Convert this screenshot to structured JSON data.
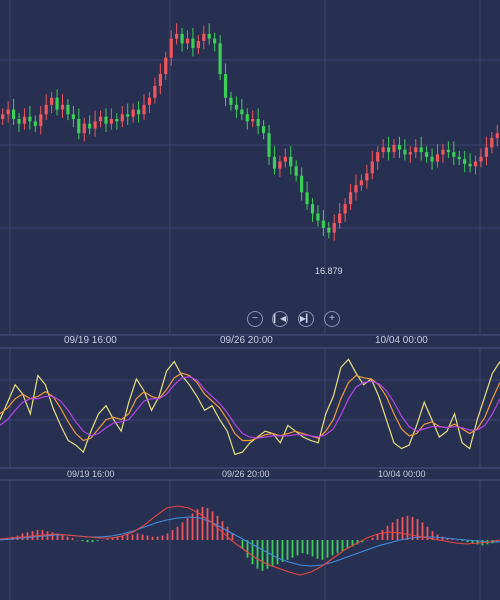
{
  "colors": {
    "background": "#283052",
    "grid": "#3b4470",
    "separator": "#4a5380",
    "up": "#f2555a",
    "down": "#3ccf55",
    "line_yellow": "#e8e07a",
    "line_orange": "#f09a3a",
    "line_purple": "#b445e6",
    "line_blue": "#3f8fe3",
    "line_red": "#e8463e"
  },
  "navigation": {
    "zoom_out_icon": "minus-circle-icon",
    "jump_start_icon": "skip-back-icon",
    "jump_end_icon": "skip-forward-icon",
    "zoom_in_icon": "plus-circle-icon"
  },
  "chart_data": [
    {
      "type": "candlestick",
      "x_labels": [
        "09/19 16:00",
        "09/26 20:00",
        "10/04 00:00"
      ],
      "low_label": "16.879",
      "ylim": [
        16.7,
        17.8
      ],
      "closes": [
        17.38,
        17.4,
        17.36,
        17.34,
        17.37,
        17.35,
        17.33,
        17.38,
        17.42,
        17.45,
        17.4,
        17.42,
        17.38,
        17.36,
        17.3,
        17.34,
        17.32,
        17.35,
        17.37,
        17.34,
        17.36,
        17.35,
        17.38,
        17.37,
        17.4,
        17.38,
        17.42,
        17.45,
        17.5,
        17.55,
        17.62,
        17.7,
        17.72,
        17.68,
        17.7,
        17.66,
        17.69,
        17.72,
        17.7,
        17.68,
        17.55,
        17.45,
        17.42,
        17.4,
        17.38,
        17.35,
        17.36,
        17.33,
        17.3,
        17.2,
        17.15,
        17.18,
        17.2,
        17.16,
        17.12,
        17.05,
        17.0,
        16.96,
        16.93,
        16.9,
        16.88,
        16.92,
        16.96,
        17.0,
        17.05,
        17.08,
        17.1,
        17.13,
        17.18,
        17.22,
        17.24,
        17.22,
        17.25,
        17.23,
        17.21,
        17.22,
        17.24,
        17.22,
        17.2,
        17.18,
        17.21,
        17.23,
        17.22,
        17.2,
        17.19,
        17.17,
        17.16,
        17.18,
        17.2,
        17.24,
        17.28,
        17.3
      ]
    },
    {
      "type": "line",
      "x_labels": [
        "09/19 16:00",
        "09/26 20:00",
        "10/04 00:00"
      ],
      "series": [
        {
          "color": "yellow",
          "values": [
            40,
            55,
            70,
            62,
            45,
            78,
            70,
            50,
            35,
            22,
            18,
            12,
            30,
            45,
            52,
            40,
            30,
            55,
            75,
            65,
            48,
            60,
            82,
            90,
            78,
            70,
            60,
            48,
            52,
            40,
            30,
            10,
            12,
            20,
            25,
            30,
            28,
            20,
            35,
            30,
            25,
            22,
            20,
            45,
            60,
            85,
            92,
            80,
            70,
            75,
            60,
            40,
            20,
            15,
            18,
            35,
            55,
            40,
            25,
            30,
            45,
            20,
            15,
            40,
            60,
            80,
            90
          ]
        },
        {
          "color": "orange",
          "values": [
            45,
            50,
            58,
            62,
            58,
            60,
            64,
            60,
            50,
            38,
            28,
            22,
            24,
            32,
            40,
            42,
            40,
            45,
            58,
            64,
            60,
            58,
            66,
            76,
            80,
            78,
            72,
            62,
            56,
            50,
            40,
            28,
            22,
            22,
            24,
            27,
            28,
            26,
            28,
            30,
            28,
            26,
            24,
            30,
            40,
            58,
            72,
            78,
            76,
            75,
            70,
            60,
            45,
            32,
            26,
            28,
            36,
            38,
            34,
            33,
            36,
            32,
            28,
            32,
            42,
            58,
            72
          ]
        },
        {
          "color": "purple",
          "values": [
            35,
            40,
            48,
            55,
            58,
            58,
            60,
            60,
            56,
            48,
            38,
            30,
            26,
            28,
            33,
            37,
            38,
            40,
            48,
            56,
            58,
            58,
            62,
            70,
            76,
            77,
            74,
            66,
            60,
            54,
            46,
            36,
            28,
            25,
            24,
            25,
            26,
            26,
            26,
            27,
            27,
            26,
            25,
            27,
            32,
            44,
            58,
            68,
            72,
            73,
            71,
            65,
            55,
            43,
            34,
            30,
            32,
            34,
            34,
            33,
            34,
            33,
            31,
            31,
            35,
            45,
            58
          ]
        }
      ]
    },
    {
      "type": "bar+line",
      "x_labels": [],
      "histogram": [
        1,
        2,
        3,
        4,
        6,
        7,
        8,
        9,
        9,
        8,
        7,
        6,
        4,
        3,
        2,
        0,
        -1,
        -2,
        -2,
        -1,
        0,
        1,
        2,
        3,
        4,
        5,
        5,
        6,
        5,
        4,
        3,
        3,
        4,
        6,
        9,
        12,
        16,
        20,
        24,
        28,
        30,
        29,
        26,
        22,
        17,
        12,
        6,
        0,
        -8,
        -16,
        -22,
        -26,
        -28,
        -26,
        -24,
        -22,
        -20,
        -18,
        -16,
        -14,
        -12,
        -13,
        -15,
        -17,
        -18,
        -16,
        -14,
        -12,
        -10,
        -8,
        -6,
        -4,
        -2,
        0,
        2,
        5,
        9,
        13,
        16,
        19,
        21,
        22,
        21,
        19,
        16,
        12,
        8,
        5,
        3,
        2,
        1,
        0,
        -1,
        -2,
        -3,
        -4,
        -5,
        -4,
        -3,
        -2
      ],
      "series": [
        {
          "color": "blue",
          "values": [
            0,
            1,
            2,
            3,
            4,
            5,
            5,
            4,
            3,
            3,
            4,
            6,
            9,
            13,
            17,
            20,
            22,
            23,
            22,
            18,
            12,
            6,
            0,
            -6,
            -12,
            -18,
            -22,
            -25,
            -26,
            -25,
            -22,
            -18,
            -14,
            -10,
            -6,
            -3,
            0,
            2,
            3,
            3,
            2,
            1,
            0,
            -1,
            -2,
            -2
          ]
        },
        {
          "color": "red",
          "values": [
            1,
            2,
            3,
            4,
            5,
            6,
            5,
            4,
            3,
            2,
            2,
            4,
            8,
            15,
            24,
            32,
            34,
            32,
            26,
            18,
            8,
            -2,
            -10,
            -18,
            -24,
            -28,
            -32,
            -35,
            -32,
            -26,
            -18,
            -10,
            -4,
            2,
            6,
            8,
            7,
            5,
            3,
            1,
            -1,
            -3,
            -4,
            -3,
            -2,
            0
          ]
        }
      ]
    }
  ]
}
